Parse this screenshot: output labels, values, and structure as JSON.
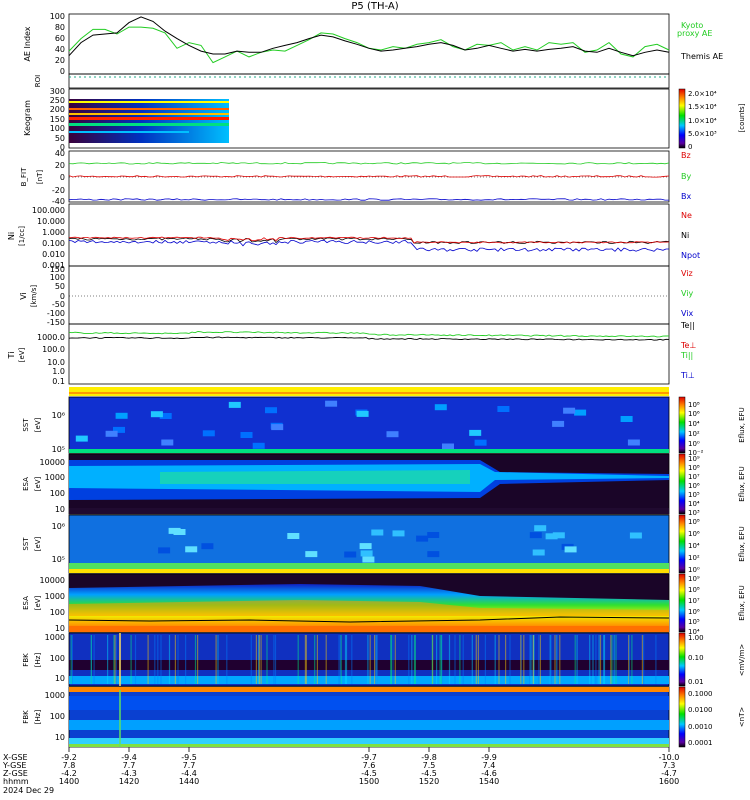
{
  "title": "P5 (TH-A)",
  "date": "2024 Dec 29",
  "colors": {
    "green": "#22cc22",
    "red": "#dd0000",
    "blue": "#0000cc",
    "black": "#000000"
  },
  "chart_data": [
    {
      "id": "ae",
      "type": "line",
      "ylabel": "AE Index",
      "yticks": [
        "100",
        "80",
        "60",
        "40",
        "20",
        "0"
      ],
      "ylim": [
        0,
        105
      ],
      "legend": [
        "Kyoto",
        "proxy AE",
        "Themis AE"
      ],
      "series": [
        {
          "name": "Kyoto proxy AE",
          "color": "green",
          "x": [
            1400,
            1404,
            1408,
            1412,
            1416,
            1420,
            1424,
            1428,
            1432,
            1436,
            1440,
            1444,
            1448,
            1452,
            1456,
            1460,
            1464,
            1468,
            1472,
            1476,
            1480,
            1484,
            1488,
            1492,
            1496,
            1500,
            1504,
            1508,
            1512,
            1516,
            1520,
            1524,
            1528,
            1532,
            1536,
            1540,
            1544,
            1548,
            1552,
            1556,
            1560,
            1564,
            1568,
            1572,
            1576,
            1580,
            1584,
            1588,
            1592,
            1596,
            1600
          ],
          "y": [
            40,
            62,
            78,
            78,
            70,
            82,
            82,
            80,
            72,
            45,
            55,
            50,
            20,
            30,
            40,
            30,
            38,
            42,
            40,
            50,
            60,
            72,
            70,
            62,
            55,
            45,
            42,
            48,
            45,
            52,
            55,
            60,
            48,
            42,
            52,
            50,
            55,
            42,
            48,
            42,
            55,
            52,
            55,
            38,
            42,
            55,
            35,
            30,
            48,
            52,
            42
          ]
        },
        {
          "name": "Themis AE",
          "color": "black",
          "x": [
            1400,
            1404,
            1408,
            1412,
            1416,
            1420,
            1424,
            1428,
            1432,
            1436,
            1440,
            1444,
            1448,
            1452,
            1456,
            1460,
            1464,
            1468,
            1472,
            1476,
            1480,
            1484,
            1488,
            1492,
            1496,
            1500,
            1504,
            1508,
            1512,
            1516,
            1520,
            1524,
            1528,
            1532,
            1536,
            1540,
            1544,
            1548,
            1552,
            1556,
            1560,
            1564,
            1568,
            1572,
            1576,
            1580,
            1584,
            1588,
            1592,
            1596,
            1600
          ],
          "y": [
            32,
            55,
            68,
            70,
            72,
            90,
            100,
            92,
            75,
            62,
            50,
            40,
            35,
            35,
            40,
            38,
            38,
            45,
            50,
            55,
            62,
            68,
            65,
            58,
            52,
            45,
            40,
            42,
            45,
            48,
            52,
            55,
            50,
            42,
            45,
            50,
            45,
            40,
            43,
            40,
            43,
            45,
            48,
            40,
            38,
            45,
            38,
            32,
            38,
            42,
            38
          ]
        }
      ]
    },
    {
      "id": "roi",
      "type": "line",
      "ylabel": "ROI"
    },
    {
      "id": "keogram",
      "type": "heatmap",
      "ylabel": "Keogram",
      "yticks": [
        "300",
        "250",
        "200",
        "150",
        "100",
        "50",
        "0"
      ],
      "ylim": [
        0,
        300
      ],
      "colorbar": {
        "label": "[counts]",
        "ticks": [
          "2.0×10⁴",
          "1.5×10⁴",
          "1.0×10⁴",
          "5.0×10³",
          "0"
        ]
      }
    },
    {
      "id": "bfield",
      "type": "line",
      "ylabel": "B_FIT",
      "ylabel2": "[nT]",
      "yticks": [
        "40",
        "20",
        "0",
        "-20",
        "-40"
      ],
      "ylim": [
        -40,
        40
      ],
      "series": [
        {
          "name": "Bz",
          "color": "red",
          "level": 1
        },
        {
          "name": "By",
          "color": "green",
          "level": 22
        },
        {
          "name": "Bx",
          "color": "blue",
          "level": -36
        }
      ]
    },
    {
      "id": "density",
      "type": "line",
      "ylabel": "Ni",
      "ylabel2": "[1/cc]",
      "yticks": [
        "100.000",
        "10.000",
        "1.000",
        "0.100",
        "0.010",
        "0.001"
      ],
      "ylim": [
        -3,
        2.5
      ],
      "log": true,
      "series": [
        {
          "name": "Ne",
          "color": "red"
        },
        {
          "name": "Ni",
          "color": "black"
        },
        {
          "name": "Npot",
          "color": "blue"
        }
      ]
    },
    {
      "id": "velocity",
      "type": "line",
      "ylabel": "Vi",
      "ylabel2": "[km/s]",
      "yticks": [
        "150",
        "100",
        "50",
        "0",
        "-50",
        "-100",
        "-150"
      ],
      "ylim": [
        -170,
        170
      ],
      "series": [
        {
          "name": "Viz",
          "color": "red"
        },
        {
          "name": "Viy",
          "color": "green"
        },
        {
          "name": "Vix",
          "color": "blue"
        }
      ]
    },
    {
      "id": "temp",
      "type": "line",
      "ylabel": "Ti",
      "ylabel2": "[eV]",
      "yticks": [
        "1000.0",
        "100.0",
        "10.0",
        "1.0",
        "0.1"
      ],
      "ylim": [
        -1.2,
        3.6
      ],
      "log": true,
      "series": [
        {
          "name": "Te||",
          "color": "black"
        },
        {
          "name": "Te⊥",
          "color": "red"
        },
        {
          "name": "Ti||",
          "color": "green"
        },
        {
          "name": "Ti⊥",
          "color": "blue"
        }
      ]
    },
    {
      "id": "sst_e",
      "type": "heatmap",
      "ylabel": "SST",
      "ylabel2": "[eV]",
      "yticks": [
        "10⁶",
        "10⁵"
      ],
      "colorbar": {
        "label": "Eflux, EFU",
        "ticks": [
          "10⁸",
          "10⁶",
          "10⁴",
          "10²",
          "10⁰",
          "10⁻²"
        ]
      }
    },
    {
      "id": "esa_e",
      "type": "heatmap",
      "ylabel": "ESA",
      "ylabel2": "[eV]",
      "yticks": [
        "10000",
        "1000",
        "100",
        "10"
      ],
      "colorbar": {
        "label": "Eflux, EFU",
        "ticks": [
          "10⁹",
          "10⁸",
          "10⁷",
          "10⁶",
          "10⁵",
          "10⁴",
          "10³"
        ]
      }
    },
    {
      "id": "sst_i",
      "type": "heatmap",
      "ylabel": "SST",
      "ylabel2": "[eV]",
      "yticks": [
        "10⁶",
        "10⁵"
      ],
      "colorbar": {
        "label": "Eflux, EFU",
        "ticks": [
          "10⁸",
          "10⁶",
          "10⁴",
          "10²",
          "10⁰"
        ]
      }
    },
    {
      "id": "esa_i",
      "type": "heatmap",
      "ylabel": "ESA",
      "ylabel2": "[eV]",
      "yticks": [
        "10000",
        "1000",
        "100",
        "10"
      ],
      "colorbar": {
        "label": "Eflux, EFU",
        "ticks": [
          "10⁹",
          "10⁸",
          "10⁷",
          "10⁶",
          "10⁵",
          "10⁴"
        ]
      }
    },
    {
      "id": "fbk_e",
      "type": "heatmap",
      "ylabel": "FBK",
      "ylabel2": "[Hz]",
      "yticks": [
        "1000",
        "100",
        "10"
      ],
      "colorbar": {
        "label": "<mV/m>",
        "ticks": [
          "1.00",
          "0.10",
          "0.01"
        ]
      }
    },
    {
      "id": "fbk_b",
      "type": "heatmap",
      "ylabel": "FBK",
      "ylabel2": "[Hz]",
      "yticks": [
        "1000",
        "100",
        "10"
      ],
      "colorbar": {
        "label": "<nT>",
        "ticks": [
          "0.1000",
          "0.0100",
          "0.0010",
          "0.0001"
        ]
      }
    }
  ],
  "xaxis": {
    "row_labels": [
      "X-GSE",
      "Y-GSE",
      "Z-GSE",
      "hhmm"
    ],
    "ticks": [
      {
        "t": 1400,
        "x": "-9.2",
        "y": "7.8",
        "z": "-4.2",
        "hhmm": "1400"
      },
      {
        "t": 1420,
        "x": "-9.4",
        "y": "7.7",
        "z": "-4.3",
        "hhmm": "1420"
      },
      {
        "t": 1440,
        "x": "-9.5",
        "y": "7.7",
        "z": "-4.4",
        "hhmm": "1440"
      },
      {
        "t": 1500,
        "x": "-9.7",
        "y": "7.6",
        "z": "-4.5",
        "hhmm": "1500"
      },
      {
        "t": 1520,
        "x": "-9.8",
        "y": "7.5",
        "z": "-4.5",
        "hhmm": "1520"
      },
      {
        "t": 1540,
        "x": "-9.9",
        "y": "7.4",
        "z": "-4.6",
        "hhmm": "1540"
      },
      {
        "t": 1600,
        "x": "-10.0",
        "y": "7.3",
        "z": "-4.7",
        "hhmm": "1600"
      }
    ]
  }
}
